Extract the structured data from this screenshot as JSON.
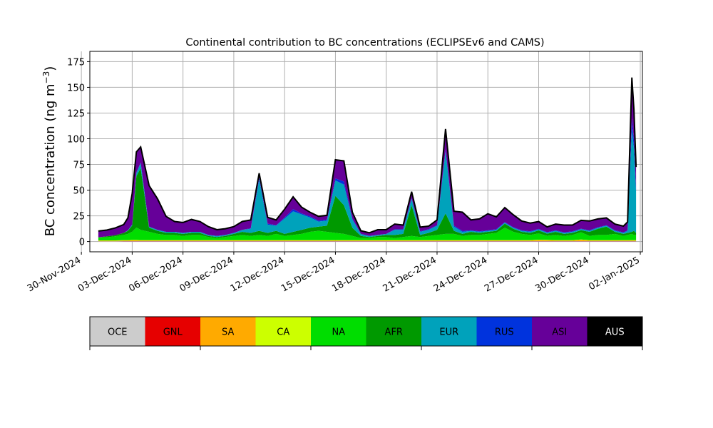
{
  "chart_data": {
    "type": "area",
    "title": "Continental contribution to BC concentrations (ECLIPSEv6 and CAMS)",
    "ylabel_main": "BC concentration (ng m",
    "ylabel_exp": "−3",
    "ylabel_tail": ")",
    "xlabel": "",
    "ylim": [
      -10,
      185
    ],
    "xlim": [
      "2024-11-30T12:00",
      "2025-01-02T03:00"
    ],
    "grid": true,
    "yticks": [
      0,
      25,
      50,
      75,
      100,
      125,
      150,
      175
    ],
    "xticks": [
      "30-Nov-2024",
      "03-Dec-2024",
      "06-Dec-2024",
      "09-Dec-2024",
      "12-Dec-2024",
      "15-Dec-2024",
      "18-Dec-2024",
      "21-Dec-2024",
      "24-Dec-2024",
      "27-Dec-2024",
      "30-Dec-2024",
      "02-Jan-2025"
    ],
    "stack_order": [
      "OCE",
      "GNL",
      "SA",
      "CA",
      "NA",
      "AFR",
      "EUR",
      "RUS",
      "ASI",
      "AUS"
    ],
    "legend": [
      {
        "name": "OCE",
        "color": "#cccccc"
      },
      {
        "name": "GNL",
        "color": "#e60000"
      },
      {
        "name": "SA",
        "color": "#ffaa00"
      },
      {
        "name": "CA",
        "color": "#ccff00"
      },
      {
        "name": "NA",
        "color": "#00dd00"
      },
      {
        "name": "AFR",
        "color": "#009900"
      },
      {
        "name": "EUR",
        "color": "#00a2bb"
      },
      {
        "name": "RUS",
        "color": "#0033dd"
      },
      {
        "name": "ASI",
        "color": "#660099"
      },
      {
        "name": "AUS",
        "color": "#000000"
      }
    ],
    "x": [
      "2024-12-01T00:00",
      "2024-12-01T12:00",
      "2024-12-02T00:00",
      "2024-12-02T12:00",
      "2024-12-02T18:00",
      "2024-12-03T00:00",
      "2024-12-03T06:00",
      "2024-12-03T12:00",
      "2024-12-04T00:00",
      "2024-12-04T12:00",
      "2024-12-05T00:00",
      "2024-12-05T12:00",
      "2024-12-06T00:00",
      "2024-12-06T12:00",
      "2024-12-07T00:00",
      "2024-12-07T12:00",
      "2024-12-08T00:00",
      "2024-12-08T12:00",
      "2024-12-09T00:00",
      "2024-12-09T12:00",
      "2024-12-10T00:00",
      "2024-12-10T12:00",
      "2024-12-11T00:00",
      "2024-12-11T12:00",
      "2024-12-12T00:00",
      "2024-12-12T12:00",
      "2024-12-13T00:00",
      "2024-12-13T12:00",
      "2024-12-14T00:00",
      "2024-12-14T12:00",
      "2024-12-15T00:00",
      "2024-12-15T12:00",
      "2024-12-16T00:00",
      "2024-12-16T12:00",
      "2024-12-17T00:00",
      "2024-12-17T12:00",
      "2024-12-18T00:00",
      "2024-12-18T12:00",
      "2024-12-19T00:00",
      "2024-12-19T12:00",
      "2024-12-20T00:00",
      "2024-12-20T12:00",
      "2024-12-21T00:00",
      "2024-12-21T12:00",
      "2024-12-22T00:00",
      "2024-12-22T12:00",
      "2024-12-23T00:00",
      "2024-12-23T12:00",
      "2024-12-24T00:00",
      "2024-12-24T12:00",
      "2024-12-25T00:00",
      "2024-12-25T12:00",
      "2024-12-26T00:00",
      "2024-12-26T12:00",
      "2024-12-27T00:00",
      "2024-12-27T12:00",
      "2024-12-28T00:00",
      "2024-12-28T12:00",
      "2024-12-29T00:00",
      "2024-12-29T12:00",
      "2024-12-30T00:00",
      "2024-12-30T12:00",
      "2024-12-31T00:00",
      "2024-12-31T12:00",
      "2025-01-01T00:00",
      "2025-01-01T06:00",
      "2025-01-01T12:00",
      "2025-01-01T15:00",
      "2025-01-01T18:00"
    ],
    "series": [
      {
        "name": "OCE",
        "values": [
          0.2,
          0.2,
          0.2,
          0.3,
          0.3,
          0.3,
          0.3,
          0.3,
          0.3,
          0.3,
          0.3,
          0.3,
          0.3,
          0.3,
          0.3,
          0.3,
          0.3,
          0.3,
          0.3,
          0.3,
          0.3,
          0.3,
          0.3,
          0.3,
          0.3,
          0.3,
          0.3,
          0.3,
          0.3,
          0.3,
          0.3,
          0.3,
          0.3,
          0.3,
          0.3,
          0.3,
          0.3,
          0.3,
          0.3,
          0.3,
          0.3,
          0.3,
          0.3,
          0.3,
          0.3,
          0.3,
          0.3,
          0.3,
          0.3,
          0.3,
          0.3,
          0.3,
          0.3,
          0.3,
          0.3,
          0.3,
          0.3,
          0.3,
          0.3,
          0.3,
          0.3,
          0.3,
          0.3,
          0.3,
          0.3,
          0.3,
          0.3,
          0.3,
          0.3
        ]
      },
      {
        "name": "GNL",
        "values": [
          0.1,
          0.1,
          0.1,
          0.1,
          0.1,
          0.1,
          0.1,
          0.1,
          0.1,
          0.1,
          0.1,
          0.1,
          0.1,
          0.1,
          0.1,
          0.1,
          0.1,
          0.1,
          0.1,
          0.1,
          0.1,
          0.1,
          0.1,
          0.1,
          0.1,
          0.1,
          0.1,
          0.1,
          0.1,
          0.1,
          0.1,
          0.1,
          0.1,
          0.1,
          0.1,
          0.1,
          0.1,
          0.1,
          0.1,
          0.1,
          0.1,
          0.1,
          0.1,
          0.1,
          0.1,
          0.1,
          0.1,
          0.1,
          0.1,
          0.1,
          0.1,
          0.1,
          0.1,
          0.1,
          0.1,
          0.1,
          0.1,
          0.1,
          0.1,
          0.1,
          0.1,
          0.1,
          0.1,
          0.1,
          0.1,
          0.1,
          0.1,
          0.1,
          0.1
        ]
      },
      {
        "name": "SA",
        "values": [
          0.5,
          0.5,
          0.5,
          0.6,
          0.6,
          0.7,
          0.7,
          0.6,
          0.6,
          0.6,
          0.6,
          0.6,
          0.6,
          0.6,
          0.6,
          0.6,
          0.6,
          0.6,
          0.6,
          0.6,
          0.6,
          0.6,
          0.6,
          0.6,
          0.6,
          0.6,
          0.6,
          0.6,
          0.6,
          0.6,
          0.6,
          0.6,
          0.6,
          0.6,
          0.6,
          0.6,
          0.6,
          0.6,
          0.6,
          0.6,
          0.6,
          0.6,
          0.6,
          0.6,
          0.6,
          0.6,
          0.6,
          0.6,
          0.6,
          0.6,
          0.6,
          0.6,
          0.6,
          0.6,
          1.0,
          0.8,
          0.6,
          0.6,
          0.6,
          1.2,
          0.6,
          0.6,
          0.6,
          0.6,
          0.6,
          0.6,
          0.6,
          0.6,
          0.6
        ]
      },
      {
        "name": "CA",
        "values": [
          0.3,
          0.3,
          0.3,
          0.4,
          0.4,
          0.5,
          0.5,
          0.4,
          0.4,
          0.4,
          0.4,
          0.4,
          0.4,
          0.4,
          0.4,
          0.4,
          0.4,
          0.4,
          0.4,
          0.4,
          0.4,
          0.4,
          0.4,
          0.4,
          0.4,
          0.4,
          0.4,
          0.4,
          0.4,
          0.4,
          0.4,
          0.4,
          0.4,
          0.4,
          0.4,
          0.4,
          0.4,
          0.4,
          0.4,
          0.4,
          0.4,
          0.4,
          0.4,
          0.4,
          0.4,
          0.4,
          0.4,
          0.4,
          0.4,
          0.4,
          0.4,
          0.4,
          0.4,
          0.4,
          0.4,
          0.4,
          0.4,
          0.4,
          0.4,
          0.4,
          0.4,
          0.4,
          0.4,
          0.4,
          0.4,
          0.4,
          0.4,
          0.4,
          0.4
        ]
      },
      {
        "name": "NA",
        "values": [
          3,
          3,
          4,
          5,
          6,
          8,
          12,
          10,
          8,
          6,
          5,
          5,
          4,
          5,
          5,
          3,
          2,
          3,
          4,
          5,
          4,
          5,
          4,
          6,
          4,
          5,
          6,
          8,
          9,
          8,
          7,
          6,
          4,
          2,
          2,
          3,
          3,
          2,
          3,
          4,
          3,
          4,
          5,
          6,
          6,
          4,
          5,
          5,
          6,
          7,
          12,
          8,
          6,
          5,
          6,
          4,
          5,
          4,
          5,
          7,
          4,
          5,
          5,
          6,
          4,
          5,
          6,
          5,
          5
        ]
      },
      {
        "name": "AFR",
        "values": [
          0,
          1,
          1,
          2,
          3,
          6,
          50,
          60,
          4,
          3,
          2,
          2,
          2,
          2,
          2,
          1,
          1,
          1,
          2,
          3,
          3,
          4,
          3,
          3,
          2,
          3,
          4,
          4,
          4,
          6,
          36,
          28,
          8,
          2,
          1,
          1,
          2,
          3,
          3,
          30,
          2,
          3,
          5,
          20,
          3,
          2,
          3,
          2,
          2,
          2,
          4,
          3,
          2,
          2,
          3,
          2,
          3,
          2,
          2,
          2,
          4,
          6,
          8,
          2,
          2,
          2,
          2,
          4,
          2
        ]
      },
      {
        "name": "EUR",
        "values": [
          0,
          0,
          0,
          0,
          0.5,
          1,
          3,
          5,
          1,
          1,
          1,
          1,
          1,
          1,
          1,
          1,
          1,
          1,
          1,
          2,
          4,
          50,
          8,
          5,
          15,
          20,
          15,
          10,
          5,
          5,
          15,
          20,
          8,
          2,
          1,
          1,
          1,
          5,
          4,
          6,
          3,
          3,
          4,
          60,
          4,
          2,
          1,
          1,
          1,
          1,
          1,
          1,
          1,
          1,
          1,
          1,
          1,
          1,
          1,
          1,
          1,
          1,
          1,
          1,
          1,
          2,
          100,
          80,
          40
        ]
      },
      {
        "name": "RUS",
        "values": [
          0,
          0,
          0,
          0,
          0,
          0,
          0.5,
          0.5,
          0,
          0,
          0,
          0,
          0,
          0,
          0,
          0,
          0,
          0,
          0,
          0,
          0.5,
          2,
          1,
          0.5,
          1,
          2,
          1,
          1,
          1,
          1,
          2,
          3,
          1,
          0,
          0,
          0,
          0,
          0.5,
          0.5,
          1,
          0.5,
          0.5,
          0.5,
          2,
          1,
          1,
          0.5,
          0.5,
          0.5,
          0.5,
          0.5,
          0.5,
          0.5,
          0.5,
          0.5,
          0.5,
          0.5,
          0.5,
          0.5,
          0.5,
          0.5,
          0.5,
          0.5,
          0.5,
          0.5,
          0.5,
          10,
          8,
          4
        ]
      },
      {
        "name": "ASI",
        "values": [
          6,
          6,
          7,
          8,
          12,
          30,
          20,
          15,
          40,
          30,
          15,
          10,
          10,
          12,
          10,
          8,
          6,
          6,
          6,
          8,
          8,
          4,
          6,
          5,
          8,
          12,
          6,
          4,
          4,
          4,
          18,
          20,
          6,
          3,
          3,
          5,
          4,
          5,
          4,
          6,
          4,
          3,
          5,
          20,
          14,
          18,
          10,
          12,
          16,
          12,
          14,
          12,
          9,
          8,
          7,
          5,
          6,
          7,
          6,
          8,
          9,
          8,
          7,
          6,
          6,
          8,
          40,
          30,
          20
        ]
      },
      {
        "name": "AUS",
        "values": [
          0.1,
          0.1,
          0.1,
          0.1,
          0.1,
          0.1,
          0.1,
          0.1,
          0.1,
          0.1,
          0.1,
          0.1,
          0.1,
          0.1,
          0.1,
          0.1,
          0.1,
          0.1,
          0.1,
          0.1,
          0.1,
          0.1,
          0.1,
          0.1,
          0.1,
          0.1,
          0.1,
          0.1,
          0.1,
          0.1,
          0.1,
          0.1,
          0.1,
          0.1,
          0.1,
          0.1,
          0.1,
          0.1,
          0.1,
          0.1,
          0.1,
          0.1,
          0.1,
          0.1,
          0.1,
          0.1,
          0.1,
          0.1,
          0.1,
          0.1,
          0.1,
          0.1,
          0.1,
          0.1,
          0.1,
          0.1,
          0.1,
          0.1,
          0.1,
          0.1,
          0.1,
          0.1,
          0.1,
          0.1,
          0.1,
          0.1,
          0.1,
          0.1,
          0.1
        ]
      }
    ]
  }
}
